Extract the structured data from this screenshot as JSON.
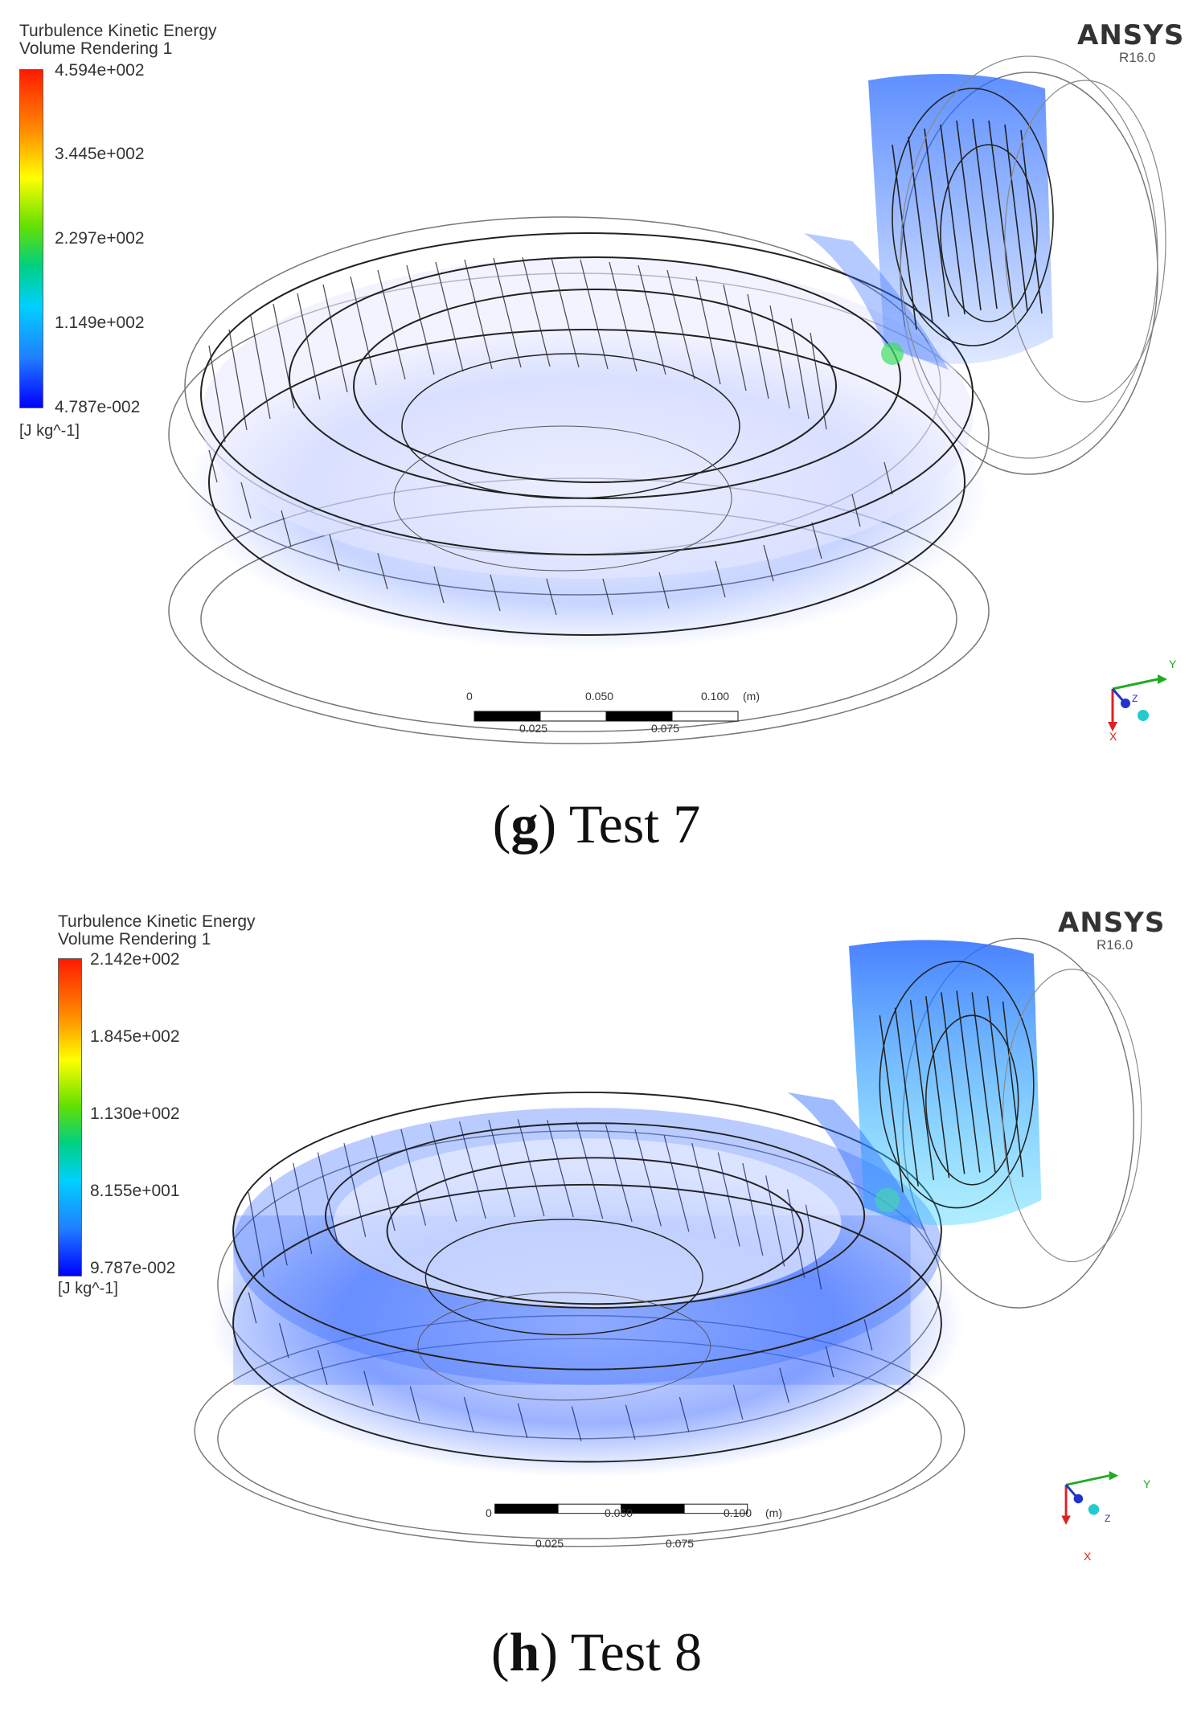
{
  "panels": [
    {
      "legend": {
        "title_line1": "Turbulence Kinetic Energy",
        "title_line2": "Volume Rendering 1",
        "values": [
          "4.594e+002",
          "3.445e+002",
          "2.297e+002",
          "1.149e+002",
          "4.787e-002"
        ],
        "unit": "[J kg^-1]"
      },
      "logo": "ANSYS",
      "version": "R16.0",
      "scale_top": [
        "0",
        "0.050",
        "0.100",
        "(m)"
      ],
      "scale_bottom": [
        "0.025",
        "0.075"
      ],
      "caption_letter": "g",
      "caption_text": "Test 7"
    },
    {
      "legend": {
        "title_line1": "Turbulence Kinetic Energy",
        "title_line2": "Volume Rendering 1",
        "values": [
          "2.142e+002",
          "1.845e+002",
          "1.130e+002",
          "8.155e+001",
          "9.787e-002"
        ],
        "unit": "[J kg^-1]"
      },
      "logo": "ANSYS",
      "version": "R16.0",
      "scale_top": [
        "0",
        "0.050",
        "0.100",
        "(m)"
      ],
      "scale_bottom": [
        "0.025",
        "0.075"
      ],
      "caption_letter": "h",
      "caption_text": "Test 8"
    }
  ],
  "axis_labels": [
    "Y",
    "Z",
    "X"
  ],
  "colors": {
    "flow_blue": "#2255ff",
    "legend_max": "#ff1a00",
    "legend_min": "#0000ff",
    "axis_y": "#22aa22",
    "axis_z": "#2233cc",
    "axis_x": "#dd2222"
  }
}
